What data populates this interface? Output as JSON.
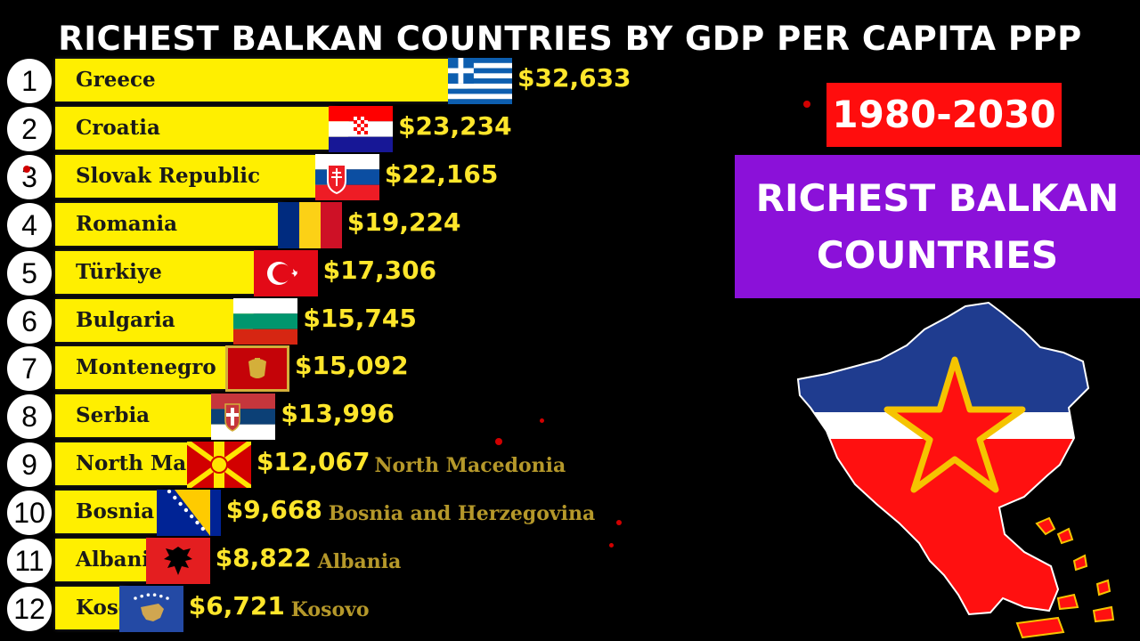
{
  "title": "RICHEST BALKAN COUNTRIES BY GDP PER CAPITA PPP",
  "year_range": "1980-2030",
  "caption": "RICHEST BALKAN COUNTRIES",
  "chart_data": {
    "type": "bar",
    "title": "RICHEST BALKAN COUNTRIES BY GDP PER CAPITA PPP",
    "orientation": "horizontal",
    "categories": [
      "Greece",
      "Croatia",
      "Slovak Republic",
      "Romania",
      "Türkiye",
      "Bulgaria",
      "Montenegro",
      "Serbia",
      "North Macedonia",
      "Bosnia and Herzegovina",
      "Albania",
      "Kosovo"
    ],
    "ranks": [
      "1",
      "2",
      "3",
      "4",
      "5",
      "6",
      "7",
      "8",
      "9",
      "10",
      "11",
      "12"
    ],
    "values": [
      32633,
      23234,
      22165,
      19224,
      17306,
      15745,
      15092,
      13996,
      12067,
      9668,
      8822,
      6721
    ],
    "value_labels": [
      "$32,633",
      "$23,234",
      "$22,165",
      "$19,224",
      "$17,306",
      "$15,745",
      "$15,092",
      "$13,996",
      "$12,067",
      "$9,668",
      "$8,822",
      "$6,721"
    ],
    "bar_labels": [
      "Greece",
      "Croatia",
      "Slovak Republic",
      "Romania",
      "Türkiye",
      "Bulgaria",
      "Montenegro",
      "Serbia",
      "North Mace",
      "Bosnia ar",
      "Albania",
      "Kosov"
    ],
    "outside_labels": [
      "",
      "",
      "",
      "",
      "",
      "",
      "",
      "",
      "North Macedonia",
      "Bosnia and Herzegovina",
      "Albania",
      "Kosovo"
    ],
    "flags": [
      "greece",
      "croatia",
      "slovakia",
      "romania",
      "turkiye",
      "bulgaria",
      "montenegro",
      "serbia",
      "north-macedonia",
      "bosnia",
      "albania",
      "kosovo"
    ],
    "bar_color": "#ffef00",
    "value_color": "#ffe62b",
    "xlim": [
      0,
      32633
    ]
  },
  "colors": {
    "background": "#000000",
    "year_box": "#ff0d0d",
    "caption_box": "#8b11d9",
    "map_blue": "#1f3c8f",
    "map_red": "#ff1010",
    "map_gold": "#f5c400"
  },
  "map_icon": "yugoslavia-flag-map-icon"
}
